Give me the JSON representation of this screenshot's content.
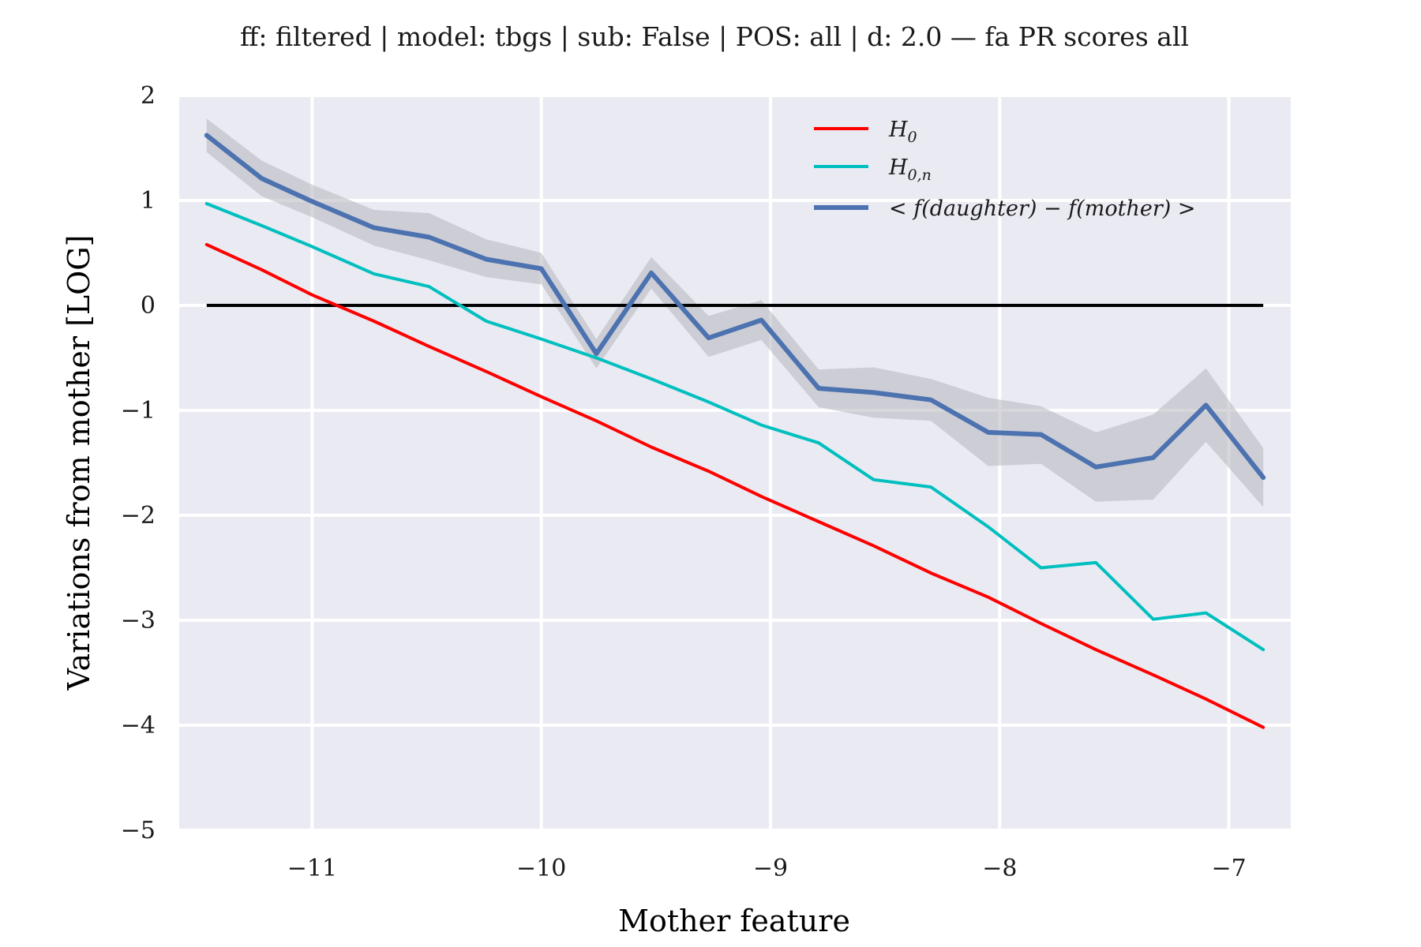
{
  "chart_data": {
    "type": "line",
    "title": "ff: filtered | model: tbgs | sub: False | POS: all | d: 2.0 — fa PR scores all",
    "xlabel": "Mother feature",
    "ylabel": "Variations from mother [LOG]",
    "xlim": [
      -11.58,
      -6.73
    ],
    "ylim": [
      -5,
      2
    ],
    "xticks": [
      -11,
      -10,
      -9,
      -8,
      -7
    ],
    "xtick_labels": [
      "−11",
      "−10",
      "−9",
      "−8",
      "−7"
    ],
    "yticks": [
      2,
      1,
      0,
      -1,
      -2,
      -3,
      -4,
      -5
    ],
    "ytick_labels": [
      "2",
      "1",
      "0",
      "−1",
      "−2",
      "−3",
      "−4",
      "−5"
    ],
    "grid": true,
    "legend_position": "top-right",
    "x": [
      -11.46,
      -11.22,
      -11.0,
      -10.73,
      -10.49,
      -10.24,
      -10.0,
      -9.76,
      -9.52,
      -9.27,
      -9.04,
      -8.79,
      -8.55,
      -8.3,
      -8.05,
      -7.82,
      -7.58,
      -7.33,
      -7.1,
      -6.85
    ],
    "series": [
      {
        "name": "H0",
        "label_main": "H",
        "label_sub": "0",
        "color": "#ff0000",
        "values": [
          0.58,
          0.34,
          0.1,
          -0.15,
          -0.39,
          -0.63,
          -0.87,
          -1.1,
          -1.35,
          -1.58,
          -1.82,
          -2.06,
          -2.29,
          -2.55,
          -2.78,
          -3.03,
          -3.28,
          -3.52,
          -3.75,
          -4.02
        ]
      },
      {
        "name": "H0,n",
        "label_main": "H",
        "label_sub": "0,n",
        "color": "#00bfbf",
        "values": [
          0.97,
          0.76,
          0.56,
          0.3,
          0.18,
          -0.15,
          -0.32,
          -0.5,
          -0.7,
          -0.92,
          -1.14,
          -1.31,
          -1.66,
          -1.73,
          -2.11,
          -2.5,
          -2.45,
          -2.99,
          -2.93,
          -3.28
        ]
      },
      {
        "name": "< f(daughter) − f(mother) >",
        "label_main": "< f(daughter) − f(mother) >",
        "label_sub": "",
        "color": "#4c72b0",
        "values": [
          1.62,
          1.21,
          0.99,
          0.74,
          0.65,
          0.44,
          0.35,
          -0.46,
          0.31,
          -0.31,
          -0.14,
          -0.79,
          -0.83,
          -0.9,
          -1.21,
          -1.23,
          -1.54,
          -1.45,
          -0.95,
          -1.64
        ],
        "band_upper": [
          1.78,
          1.38,
          1.15,
          0.91,
          0.88,
          0.63,
          0.5,
          -0.32,
          0.46,
          -0.1,
          0.05,
          -0.61,
          -0.59,
          -0.7,
          -0.88,
          -0.96,
          -1.21,
          -1.04,
          -0.6,
          -1.36
        ],
        "band_lower": [
          1.46,
          1.04,
          0.84,
          0.57,
          0.43,
          0.27,
          0.2,
          -0.6,
          0.16,
          -0.49,
          -0.33,
          -0.97,
          -1.07,
          -1.1,
          -1.53,
          -1.51,
          -1.87,
          -1.85,
          -1.3,
          -1.92
        ],
        "band_color": "#b0b0b8"
      }
    ],
    "reference_line": {
      "y": 0,
      "color": "#000000"
    }
  }
}
